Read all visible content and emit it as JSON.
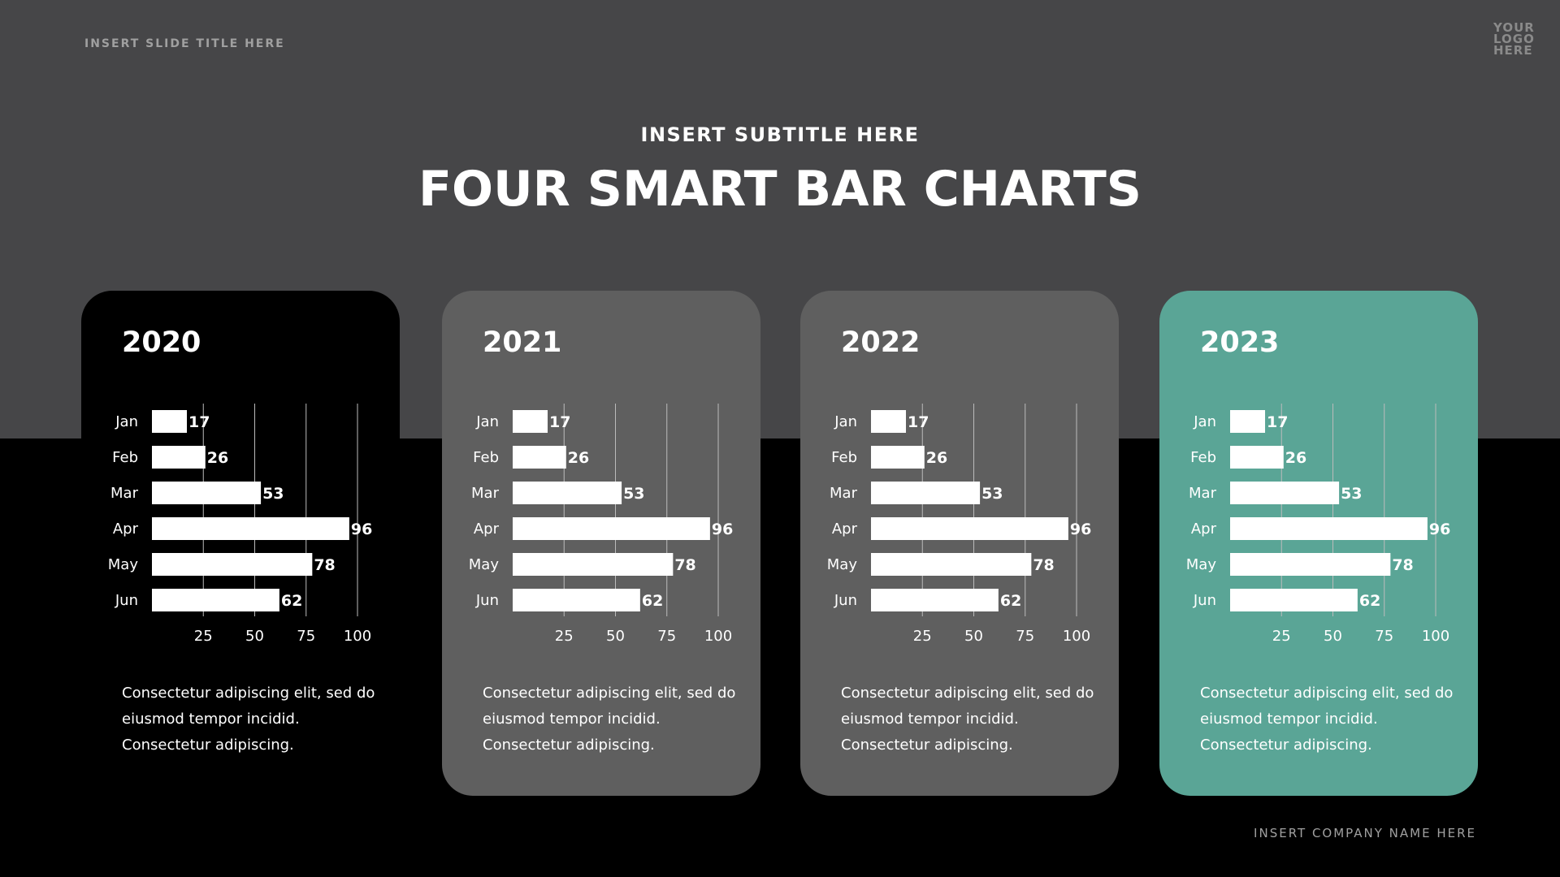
{
  "header": {
    "slide_title": "INSERT SLIDE TITLE HERE",
    "logo": "YOUR LOGO HERE",
    "subtitle": "INSERT SUBTITLE HERE",
    "title": "FOUR SMART BAR CHARTS"
  },
  "footer": {
    "company": "INSERT COMPANY NAME HERE"
  },
  "colors": {
    "top_band": "#464648",
    "background": "#000000",
    "bar": "#ffffff"
  },
  "cards": [
    {
      "year": "2020",
      "color": "#000000",
      "description": "Consectetur adipiscing elit, sed do eiusmod tempor incidid. Consectetur adipiscing."
    },
    {
      "year": "2021",
      "color": "#5f5f5f",
      "description": "Consectetur adipiscing elit, sed do eiusmod tempor incidid. Consectetur adipiscing."
    },
    {
      "year": "2022",
      "color": "#5f5f5f",
      "description": "Consectetur adipiscing elit, sed do eiusmod tempor incidid. Consectetur adipiscing."
    },
    {
      "year": "2023",
      "color": "#5aa596",
      "description": "Consectetur adipiscing elit, sed do eiusmod tempor incidid. Consectetur adipiscing."
    }
  ],
  "chart_data": [
    {
      "type": "bar",
      "orientation": "horizontal",
      "title": "2020",
      "categories": [
        "Jan",
        "Feb",
        "Mar",
        "Apr",
        "May",
        "Jun"
      ],
      "values": [
        17,
        26,
        53,
        96,
        78,
        62
      ],
      "xlim": [
        0,
        100
      ],
      "xticks": [
        25,
        50,
        75,
        100
      ],
      "grid": true
    },
    {
      "type": "bar",
      "orientation": "horizontal",
      "title": "2021",
      "categories": [
        "Jan",
        "Feb",
        "Mar",
        "Apr",
        "May",
        "Jun"
      ],
      "values": [
        17,
        26,
        53,
        96,
        78,
        62
      ],
      "xlim": [
        0,
        100
      ],
      "xticks": [
        25,
        50,
        75,
        100
      ],
      "grid": true
    },
    {
      "type": "bar",
      "orientation": "horizontal",
      "title": "2022",
      "categories": [
        "Jan",
        "Feb",
        "Mar",
        "Apr",
        "May",
        "Jun"
      ],
      "values": [
        17,
        26,
        53,
        96,
        78,
        62
      ],
      "xlim": [
        0,
        100
      ],
      "xticks": [
        25,
        50,
        75,
        100
      ],
      "grid": true
    },
    {
      "type": "bar",
      "orientation": "horizontal",
      "title": "2023",
      "categories": [
        "Jan",
        "Feb",
        "Mar",
        "Apr",
        "May",
        "Jun"
      ],
      "values": [
        17,
        26,
        53,
        96,
        78,
        62
      ],
      "xlim": [
        0,
        100
      ],
      "xticks": [
        25,
        50,
        75,
        100
      ],
      "grid": true
    }
  ]
}
